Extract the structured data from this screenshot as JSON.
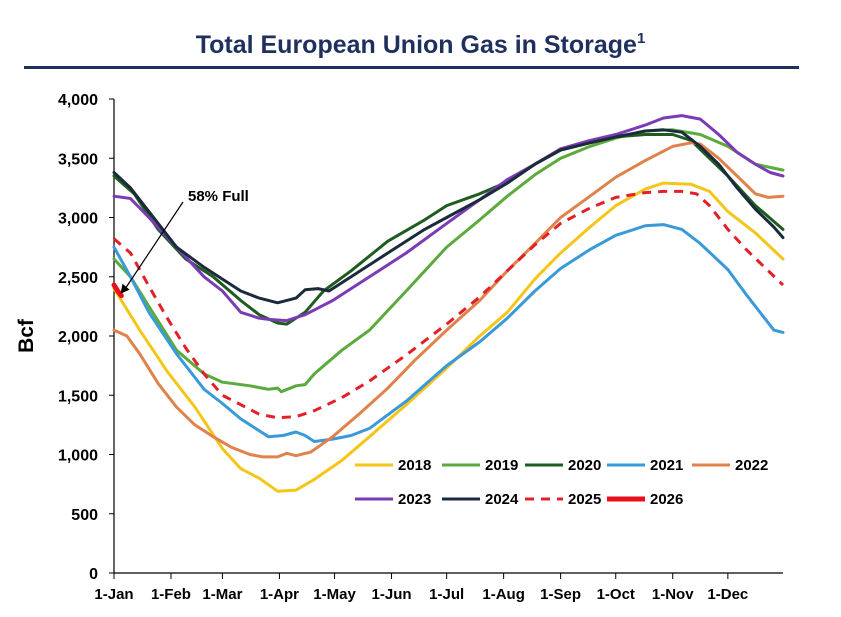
{
  "chart_data": {
    "type": "line",
    "title": "Total European Union Gas in Storage",
    "title_superscript": "1",
    "ylabel": "Bcf",
    "xlabel": "",
    "ylim": [
      0,
      4000
    ],
    "ytick_values": [
      0,
      500,
      1000,
      1500,
      2000,
      2500,
      3000,
      3500,
      4000
    ],
    "ytick_labels": [
      "0",
      "500",
      "1,000",
      "1,500",
      "2,000",
      "2,500",
      "3,000",
      "3,500",
      "4,000"
    ],
    "xlim_day_of_year": [
      1,
      365
    ],
    "xtick_days": [
      1,
      32,
      60,
      91,
      121,
      152,
      182,
      213,
      244,
      274,
      305,
      335
    ],
    "xtick_labels": [
      "1-Jan",
      "1-Feb",
      "1-Mar",
      "1-Apr",
      "1-May",
      "1-Jun",
      "1-Jul",
      "1-Aug",
      "1-Sep",
      "1-Oct",
      "1-Nov",
      "1-Dec"
    ],
    "grid": false,
    "legend_position": "bottom-right",
    "annotation": {
      "text": "58% Full",
      "target": {
        "x": 4,
        "y": 2340
      }
    },
    "series": [
      {
        "name": "2018",
        "color": "#f5c518",
        "dashed": false,
        "width": 3,
        "points": [
          [
            1,
            2400
          ],
          [
            15,
            2050
          ],
          [
            30,
            1700
          ],
          [
            45,
            1400
          ],
          [
            60,
            1050
          ],
          [
            70,
            880
          ],
          [
            80,
            800
          ],
          [
            90,
            690
          ],
          [
            100,
            700
          ],
          [
            110,
            790
          ],
          [
            125,
            950
          ],
          [
            140,
            1150
          ],
          [
            160,
            1420
          ],
          [
            182,
            1730
          ],
          [
            200,
            2000
          ],
          [
            215,
            2200
          ],
          [
            230,
            2480
          ],
          [
            244,
            2700
          ],
          [
            260,
            2920
          ],
          [
            274,
            3100
          ],
          [
            290,
            3240
          ],
          [
            300,
            3290
          ],
          [
            315,
            3280
          ],
          [
            325,
            3220
          ],
          [
            335,
            3050
          ],
          [
            350,
            2870
          ],
          [
            365,
            2650
          ]
        ]
      },
      {
        "name": "2019",
        "color": "#5aaa3c",
        "dashed": false,
        "width": 3,
        "points": [
          [
            1,
            2650
          ],
          [
            10,
            2500
          ],
          [
            20,
            2250
          ],
          [
            35,
            1880
          ],
          [
            50,
            1680
          ],
          [
            60,
            1610
          ],
          [
            75,
            1580
          ],
          [
            85,
            1550
          ],
          [
            90,
            1560
          ],
          [
            92,
            1530
          ],
          [
            100,
            1580
          ],
          [
            105,
            1590
          ],
          [
            110,
            1680
          ],
          [
            125,
            1880
          ],
          [
            140,
            2050
          ],
          [
            160,
            2380
          ],
          [
            182,
            2750
          ],
          [
            200,
            2980
          ],
          [
            215,
            3180
          ],
          [
            230,
            3360
          ],
          [
            244,
            3500
          ],
          [
            260,
            3600
          ],
          [
            274,
            3670
          ],
          [
            290,
            3730
          ],
          [
            305,
            3740
          ],
          [
            320,
            3700
          ],
          [
            335,
            3600
          ],
          [
            350,
            3450
          ],
          [
            365,
            3400
          ]
        ]
      },
      {
        "name": "2020",
        "color": "#1e5c20",
        "dashed": false,
        "width": 3,
        "points": [
          [
            1,
            3350
          ],
          [
            12,
            3200
          ],
          [
            25,
            2900
          ],
          [
            40,
            2650
          ],
          [
            55,
            2500
          ],
          [
            70,
            2300
          ],
          [
            80,
            2180
          ],
          [
            90,
            2110
          ],
          [
            95,
            2100
          ],
          [
            105,
            2200
          ],
          [
            115,
            2380
          ],
          [
            130,
            2550
          ],
          [
            150,
            2800
          ],
          [
            170,
            2980
          ],
          [
            182,
            3100
          ],
          [
            200,
            3200
          ],
          [
            215,
            3300
          ],
          [
            230,
            3450
          ],
          [
            244,
            3570
          ],
          [
            260,
            3630
          ],
          [
            274,
            3680
          ],
          [
            290,
            3700
          ],
          [
            305,
            3700
          ],
          [
            315,
            3650
          ],
          [
            325,
            3500
          ],
          [
            335,
            3350
          ],
          [
            350,
            3100
          ],
          [
            365,
            2900
          ]
        ]
      },
      {
        "name": "2021",
        "color": "#3a9ad9",
        "dashed": false,
        "width": 3,
        "points": [
          [
            1,
            2750
          ],
          [
            10,
            2500
          ],
          [
            20,
            2200
          ],
          [
            35,
            1850
          ],
          [
            50,
            1550
          ],
          [
            60,
            1430
          ],
          [
            70,
            1300
          ],
          [
            80,
            1200
          ],
          [
            85,
            1150
          ],
          [
            93,
            1160
          ],
          [
            100,
            1190
          ],
          [
            105,
            1160
          ],
          [
            110,
            1110
          ],
          [
            120,
            1130
          ],
          [
            130,
            1160
          ],
          [
            140,
            1220
          ],
          [
            160,
            1450
          ],
          [
            182,
            1750
          ],
          [
            200,
            1950
          ],
          [
            215,
            2150
          ],
          [
            230,
            2380
          ],
          [
            244,
            2570
          ],
          [
            260,
            2730
          ],
          [
            274,
            2850
          ],
          [
            290,
            2930
          ],
          [
            300,
            2940
          ],
          [
            310,
            2900
          ],
          [
            320,
            2780
          ],
          [
            335,
            2560
          ],
          [
            345,
            2350
          ],
          [
            355,
            2150
          ],
          [
            360,
            2050
          ],
          [
            365,
            2030
          ]
        ]
      },
      {
        "name": "2022",
        "color": "#e0824a",
        "dashed": false,
        "width": 3,
        "points": [
          [
            1,
            2050
          ],
          [
            8,
            2000
          ],
          [
            15,
            1850
          ],
          [
            25,
            1600
          ],
          [
            35,
            1400
          ],
          [
            45,
            1250
          ],
          [
            55,
            1150
          ],
          [
            65,
            1060
          ],
          [
            75,
            1000
          ],
          [
            82,
            980
          ],
          [
            90,
            980
          ],
          [
            95,
            1010
          ],
          [
            100,
            990
          ],
          [
            108,
            1020
          ],
          [
            120,
            1150
          ],
          [
            135,
            1350
          ],
          [
            150,
            1560
          ],
          [
            165,
            1800
          ],
          [
            182,
            2050
          ],
          [
            200,
            2300
          ],
          [
            215,
            2550
          ],
          [
            230,
            2780
          ],
          [
            244,
            3000
          ],
          [
            260,
            3180
          ],
          [
            274,
            3340
          ],
          [
            290,
            3480
          ],
          [
            305,
            3600
          ],
          [
            315,
            3630
          ],
          [
            320,
            3620
          ],
          [
            330,
            3500
          ],
          [
            340,
            3350
          ],
          [
            350,
            3200
          ],
          [
            357,
            3170
          ],
          [
            365,
            3180
          ]
        ]
      },
      {
        "name": "2023",
        "color": "#7a3bb5",
        "dashed": false,
        "width": 3,
        "points": [
          [
            1,
            3180
          ],
          [
            10,
            3160
          ],
          [
            20,
            3000
          ],
          [
            35,
            2750
          ],
          [
            50,
            2500
          ],
          [
            60,
            2380
          ],
          [
            70,
            2200
          ],
          [
            80,
            2150
          ],
          [
            85,
            2140
          ],
          [
            95,
            2130
          ],
          [
            105,
            2180
          ],
          [
            120,
            2300
          ],
          [
            140,
            2500
          ],
          [
            160,
            2700
          ],
          [
            182,
            2950
          ],
          [
            200,
            3150
          ],
          [
            215,
            3320
          ],
          [
            230,
            3450
          ],
          [
            244,
            3580
          ],
          [
            260,
            3650
          ],
          [
            274,
            3700
          ],
          [
            290,
            3780
          ],
          [
            300,
            3840
          ],
          [
            310,
            3860
          ],
          [
            320,
            3830
          ],
          [
            330,
            3700
          ],
          [
            340,
            3550
          ],
          [
            350,
            3450
          ],
          [
            358,
            3380
          ],
          [
            365,
            3350
          ]
        ]
      },
      {
        "name": "2024",
        "color": "#1a2b3c",
        "dashed": false,
        "width": 3,
        "points": [
          [
            1,
            3380
          ],
          [
            10,
            3250
          ],
          [
            20,
            3050
          ],
          [
            35,
            2750
          ],
          [
            50,
            2580
          ],
          [
            60,
            2480
          ],
          [
            70,
            2380
          ],
          [
            80,
            2320
          ],
          [
            90,
            2280
          ],
          [
            100,
            2320
          ],
          [
            105,
            2390
          ],
          [
            112,
            2400
          ],
          [
            118,
            2380
          ],
          [
            130,
            2500
          ],
          [
            150,
            2700
          ],
          [
            170,
            2900
          ],
          [
            182,
            3000
          ],
          [
            200,
            3150
          ],
          [
            215,
            3290
          ],
          [
            230,
            3450
          ],
          [
            244,
            3570
          ],
          [
            260,
            3630
          ],
          [
            274,
            3680
          ],
          [
            290,
            3730
          ],
          [
            300,
            3740
          ],
          [
            310,
            3720
          ],
          [
            320,
            3600
          ],
          [
            330,
            3450
          ],
          [
            340,
            3250
          ],
          [
            350,
            3070
          ],
          [
            360,
            2920
          ],
          [
            365,
            2830
          ]
        ]
      },
      {
        "name": "2025",
        "color": "#e3202a",
        "dashed": true,
        "width": 3,
        "points": [
          [
            1,
            2820
          ],
          [
            10,
            2700
          ],
          [
            20,
            2420
          ],
          [
            30,
            2150
          ],
          [
            40,
            1900
          ],
          [
            50,
            1680
          ],
          [
            60,
            1500
          ],
          [
            70,
            1420
          ],
          [
            80,
            1340
          ],
          [
            90,
            1310
          ],
          [
            100,
            1320
          ],
          [
            110,
            1370
          ],
          [
            125,
            1480
          ],
          [
            140,
            1620
          ],
          [
            160,
            1840
          ],
          [
            182,
            2100
          ],
          [
            200,
            2330
          ],
          [
            215,
            2550
          ],
          [
            230,
            2770
          ],
          [
            244,
            2950
          ],
          [
            260,
            3080
          ],
          [
            274,
            3170
          ],
          [
            290,
            3210
          ],
          [
            300,
            3220
          ],
          [
            310,
            3220
          ],
          [
            318,
            3200
          ],
          [
            325,
            3100
          ],
          [
            335,
            2900
          ],
          [
            345,
            2730
          ],
          [
            355,
            2580
          ],
          [
            365,
            2430
          ]
        ]
      },
      {
        "name": "2026",
        "color": "#e8101a",
        "dashed": false,
        "width": 5,
        "points": [
          [
            1,
            2430
          ],
          [
            3,
            2380
          ],
          [
            5,
            2340
          ]
        ]
      }
    ]
  }
}
